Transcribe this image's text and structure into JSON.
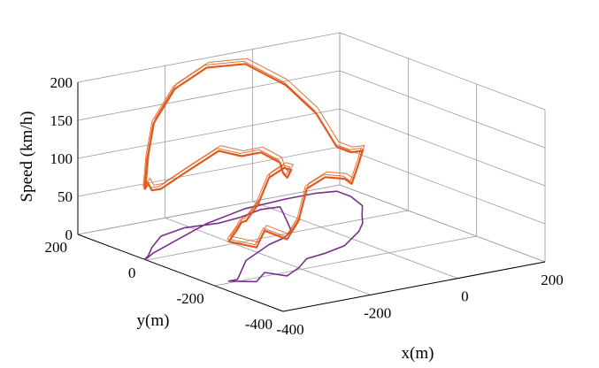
{
  "chart_data": {
    "type": "line3d",
    "xlabel": "x(m)",
    "ylabel": "y(m)",
    "zlabel": "Speed (km/h)",
    "x_ticks": [
      "-400",
      "-200",
      "0",
      "200"
    ],
    "y_ticks": [
      "-400",
      "-200",
      "0",
      "200"
    ],
    "z_ticks": [
      "0",
      "50",
      "100",
      "150",
      "200"
    ],
    "xlim": [
      -400,
      200
    ],
    "ylim": [
      -400,
      200
    ],
    "zlim": [
      0,
      200
    ],
    "grid": true,
    "colors": {
      "speed_trace": "#e05a1c",
      "track_projection": "#7b2d8e",
      "grid": "#9a9a9a"
    },
    "series": [
      {
        "role": "speed-trace-3d",
        "points": [
          [
            -400,
            5,
            92
          ],
          [
            -380,
            20,
            95
          ],
          [
            -340,
            60,
            75
          ],
          [
            -280,
            110,
            62
          ],
          [
            -210,
            130,
            72
          ],
          [
            -140,
            120,
            95
          ],
          [
            -80,
            130,
            80
          ],
          [
            -20,
            150,
            75
          ],
          [
            20,
            145,
            58
          ],
          [
            0,
            110,
            52
          ],
          [
            -30,
            60,
            58
          ],
          [
            -60,
            10,
            80
          ],
          [
            -100,
            -20,
            92
          ],
          [
            -150,
            -40,
            88
          ],
          [
            -200,
            -70,
            62
          ],
          [
            -250,
            -100,
            52
          ],
          [
            -300,
            -150,
            64
          ],
          [
            -340,
            -190,
            66
          ],
          [
            -360,
            -190,
            52
          ],
          [
            -320,
            -220,
            45
          ],
          [
            -270,
            -180,
            55
          ],
          [
            -250,
            -220,
            48
          ],
          [
            -200,
            -190,
            62
          ],
          [
            -150,
            -150,
            92
          ],
          [
            -100,
            -140,
            100
          ],
          [
            -40,
            -120,
            88
          ],
          [
            0,
            -90,
            72
          ],
          [
            40,
            -60,
            90
          ],
          [
            80,
            -20,
            96
          ],
          [
            110,
            20,
            82
          ],
          [
            150,
            70,
            72
          ],
          [
            170,
            130,
            58
          ],
          [
            170,
            170,
            58
          ],
          [
            130,
            180,
            105
          ],
          [
            60,
            180,
            150
          ],
          [
            -40,
            170,
            190
          ],
          [
            -160,
            130,
            205
          ],
          [
            -280,
            70,
            200
          ],
          [
            -360,
            30,
            170
          ],
          [
            -390,
            10,
            130
          ],
          [
            -400,
            5,
            92
          ]
        ]
      },
      {
        "role": "track-ground-projection",
        "points": [
          [
            -400,
            5
          ],
          [
            -380,
            20
          ],
          [
            -340,
            60
          ],
          [
            -280,
            110
          ],
          [
            -210,
            130
          ],
          [
            -140,
            120
          ],
          [
            -80,
            130
          ],
          [
            -20,
            150
          ],
          [
            20,
            145
          ],
          [
            0,
            110
          ],
          [
            -30,
            60
          ],
          [
            -60,
            10
          ],
          [
            -100,
            -20
          ],
          [
            -150,
            -40
          ],
          [
            -200,
            -70
          ],
          [
            -250,
            -100
          ],
          [
            -300,
            -150
          ],
          [
            -340,
            -190
          ],
          [
            -360,
            -190
          ],
          [
            -320,
            -220
          ],
          [
            -270,
            -180
          ],
          [
            -250,
            -220
          ],
          [
            -200,
            -190
          ],
          [
            -150,
            -150
          ],
          [
            -100,
            -140
          ],
          [
            -40,
            -120
          ],
          [
            0,
            -90
          ],
          [
            40,
            -60
          ],
          [
            80,
            -20
          ],
          [
            110,
            20
          ],
          [
            150,
            70
          ],
          [
            170,
            130
          ],
          [
            170,
            170
          ],
          [
            130,
            180
          ],
          [
            60,
            180
          ],
          [
            -40,
            170
          ],
          [
            -160,
            130
          ],
          [
            -280,
            70
          ],
          [
            -360,
            30
          ],
          [
            -390,
            10
          ],
          [
            -400,
            5
          ]
        ]
      }
    ]
  }
}
